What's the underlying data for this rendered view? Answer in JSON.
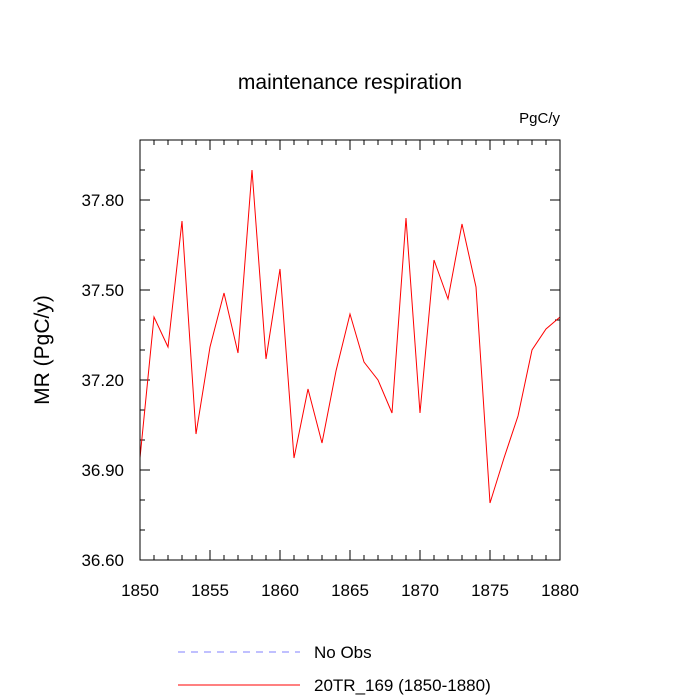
{
  "chart_data": {
    "type": "line",
    "title": "maintenance respiration",
    "units_label": "PgC/y",
    "xlabel": "",
    "ylabel": "MR  (PgC/y)",
    "xlim": [
      1850,
      1880
    ],
    "ylim": [
      36.6,
      38.0
    ],
    "xticks": [
      1850,
      1855,
      1860,
      1865,
      1870,
      1875,
      1880
    ],
    "yticks": [
      36.6,
      36.9,
      37.2,
      37.5,
      37.8
    ],
    "ytick_labels": [
      "36.60",
      "36.90",
      "37.20",
      "37.50",
      "37.80"
    ],
    "series": [
      {
        "name": "20TR_169 (1850-1880)",
        "color": "#ff0000",
        "x": [
          1850,
          1851,
          1852,
          1853,
          1854,
          1855,
          1856,
          1857,
          1858,
          1859,
          1860,
          1861,
          1862,
          1863,
          1864,
          1865,
          1866,
          1867,
          1868,
          1869,
          1870,
          1871,
          1872,
          1873,
          1874,
          1875,
          1876,
          1877,
          1878,
          1879,
          1880
        ],
        "values": [
          36.94,
          37.41,
          37.31,
          37.73,
          37.02,
          37.31,
          37.49,
          37.29,
          37.9,
          37.27,
          37.57,
          36.94,
          37.17,
          36.99,
          37.23,
          37.42,
          37.26,
          37.2,
          37.09,
          37.74,
          37.09,
          37.6,
          37.47,
          37.72,
          37.51,
          36.79,
          36.94,
          37.08,
          37.3,
          37.37,
          37.41
        ]
      }
    ],
    "legend": [
      {
        "label": "No Obs",
        "color": "#8080ff",
        "style": "dashed"
      },
      {
        "label": "20TR_169 (1850-1880)",
        "color": "#ff0000",
        "style": "solid"
      }
    ]
  }
}
